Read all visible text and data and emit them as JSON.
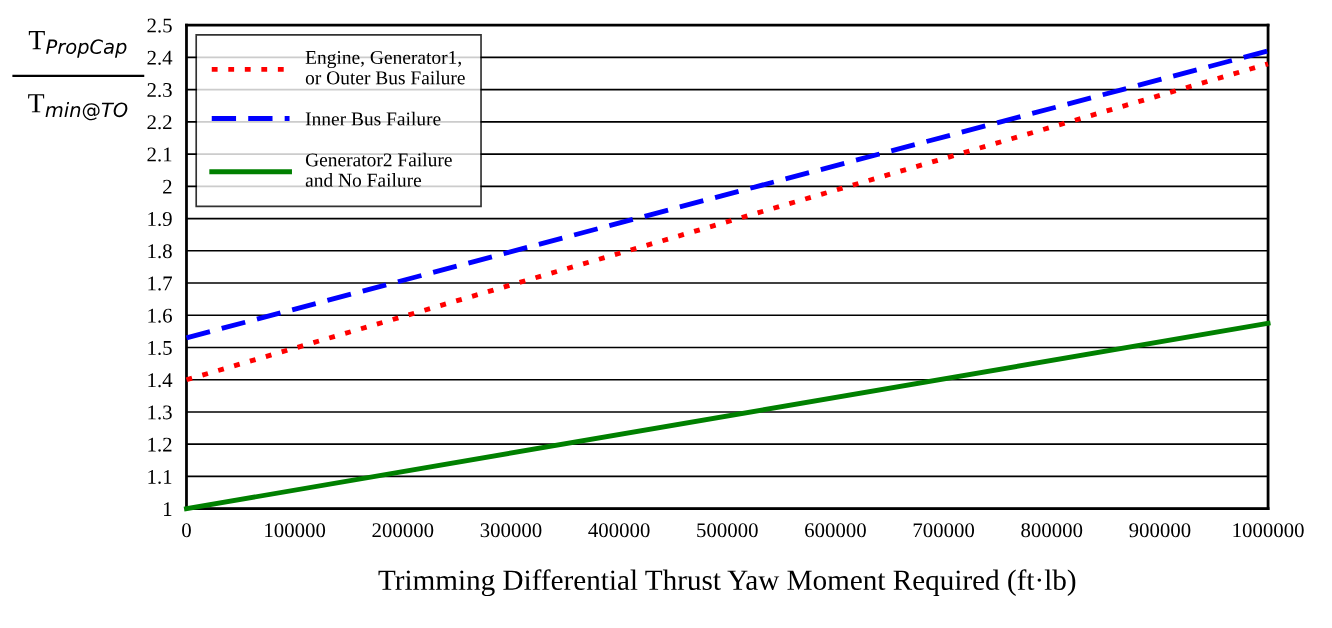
{
  "chart_data": {
    "type": "line",
    "xlabel": "Trimming Differential Thrust Yaw Moment Required (ft·lb)",
    "ylabel": "T$_{PropCap}$\nT$_{min@TO}$",
    "x": [
      0,
      1000000
    ],
    "series": [
      {
        "name": "Engine, Generator1,\nor Outer Bus Failure",
        "color": "#ff0000",
        "line_style": "dotted",
        "values": [
          1.4,
          2.38
        ]
      },
      {
        "name": "Inner Bus Failure",
        "color": "#0000ff",
        "line_style": "dashed",
        "values": [
          1.53,
          2.42
        ]
      },
      {
        "name": "Generator2 Failure\nand No Failure",
        "color": "#008000",
        "line_style": "solid",
        "values": [
          1.0,
          1.575
        ]
      }
    ],
    "xlim": [
      0,
      1000000
    ],
    "xticks": [
      0,
      100000,
      200000,
      300000,
      400000,
      500000,
      600000,
      700000,
      800000,
      900000,
      1000000
    ],
    "ylim": [
      1,
      2.5
    ],
    "yticks": [
      1,
      1.1,
      1.2,
      1.3,
      1.4,
      1.5,
      1.6,
      1.7,
      1.8,
      1.9,
      2,
      2.1,
      2.2,
      2.3,
      2.4,
      2.5
    ],
    "grid": "y",
    "legend": "top left",
    "marker": "none"
  }
}
